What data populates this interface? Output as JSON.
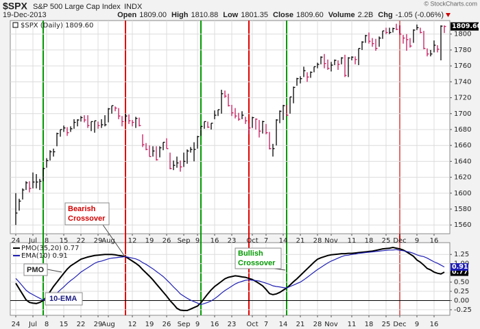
{
  "chart_data": [
    {
      "type": "ohlc",
      "title": "$SPX",
      "subtitle": "S&P 500 Large Cap Index",
      "exchange": "INDX",
      "date": "19-Dec-2013",
      "credit": "© StockCharts.com",
      "quote": [
        {
          "label": "Open",
          "value": "1809.00"
        },
        {
          "label": "High",
          "value": "1810.88"
        },
        {
          "label": "Low",
          "value": "1801.35"
        },
        {
          "label": "Close",
          "value": "1809.60"
        },
        {
          "label": "Volume",
          "value": "2.2B"
        },
        {
          "label": "Chg",
          "value": "-1.05 (-0.06%)"
        }
      ],
      "legend": "$SPX (Daily) 1809.60",
      "categories": [
        "24",
        null,
        null,
        null,
        null,
        "Jul",
        null,
        null,
        null,
        "8",
        null,
        null,
        null,
        null,
        "15",
        null,
        null,
        null,
        null,
        "22",
        null,
        null,
        null,
        null,
        "29",
        null,
        null,
        "Aug",
        null,
        null,
        null,
        null,
        null,
        null,
        "12",
        null,
        null,
        null,
        null,
        "19",
        null,
        null,
        null,
        null,
        "26",
        null,
        null,
        null,
        null,
        "Sep",
        null,
        null,
        null,
        "9",
        null,
        null,
        null,
        null,
        "16",
        null,
        null,
        null,
        null,
        "23",
        null,
        null,
        null,
        null,
        null,
        "Oct",
        null,
        null,
        null,
        "7",
        null,
        null,
        null,
        null,
        "14",
        null,
        null,
        null,
        null,
        "21",
        null,
        null,
        null,
        null,
        "28",
        null,
        null,
        null,
        "Nov",
        null,
        null,
        null,
        null,
        null,
        "11",
        null,
        null,
        null,
        null,
        "18",
        null,
        null,
        null,
        null,
        "25",
        null,
        null,
        null,
        "Dec",
        null,
        null,
        null,
        null,
        "9",
        null,
        null,
        null,
        null,
        "16",
        null,
        null,
        null
      ],
      "high": [
        1600,
        1593,
        1606,
        1615,
        1615,
        1626,
        1624,
        1618,
        1632,
        1644,
        1654,
        1656,
        1676,
        1680,
        1685,
        1683,
        1684,
        1693,
        1693,
        1697,
        1698,
        1698,
        1690,
        1691,
        1690,
        1693,
        1698,
        1707,
        1710,
        1709,
        1707,
        1697,
        1700,
        1699,
        1692,
        1696,
        1695,
        1674,
        1663,
        1660,
        1659,
        1659,
        1659,
        1664,
        1669,
        1651,
        1641,
        1646,
        1641,
        1651,
        1655,
        1658,
        1664,
        1672,
        1684,
        1690,
        1690,
        1688,
        1704,
        1705,
        1730,
        1729,
        1725,
        1711,
        1707,
        1701,
        1703,
        1696,
        1688,
        1696,
        1694,
        1692,
        1691,
        1687,
        1677,
        1662,
        1693,
        1704,
        1711,
        1711,
        1721,
        1734,
        1745,
        1747,
        1759,
        1752,
        1753,
        1759,
        1764,
        1772,
        1775,
        1768,
        1765,
        1768,
        1767,
        1771,
        1774,
        1771,
        1772,
        1772,
        1782,
        1791,
        1799,
        1802,
        1795,
        1794,
        1797,
        1804,
        1808,
        1808,
        1808,
        1813,
        1811,
        1799,
        1800,
        1795,
        1806,
        1812,
        1808,
        1804,
        1782,
        1780,
        1792,
        1786,
        1811,
        1810.88
      ],
      "low": [
        1560,
        1578,
        1592,
        1604,
        1601,
        1606,
        1606,
        1604,
        1615,
        1632,
        1641,
        1646,
        1659,
        1671,
        1677,
        1672,
        1677,
        1681,
        1684,
        1690,
        1689,
        1682,
        1678,
        1676,
        1681,
        1682,
        1684,
        1689,
        1700,
        1703,
        1693,
        1684,
        1690,
        1687,
        1684,
        1682,
        1684,
        1658,
        1654,
        1646,
        1646,
        1641,
        1645,
        1654,
        1656,
        1630,
        1629,
        1632,
        1627,
        1633,
        1637,
        1651,
        1640,
        1656,
        1672,
        1681,
        1682,
        1680,
        1693,
        1697,
        1700,
        1720,
        1709,
        1697,
        1694,
        1691,
        1693,
        1687,
        1674,
        1682,
        1680,
        1670,
        1675,
        1674,
        1655,
        1646,
        1660,
        1688,
        1692,
        1697,
        1700,
        1713,
        1735,
        1738,
        1746,
        1740,
        1745,
        1752,
        1757,
        1762,
        1757,
        1755,
        1753,
        1761,
        1755,
        1762,
        1746,
        1746,
        1767,
        1762,
        1761,
        1780,
        1789,
        1788,
        1784,
        1779,
        1784,
        1794,
        1800,
        1800,
        1802,
        1805,
        1799,
        1788,
        1779,
        1783,
        1789,
        1805,
        1801,
        1781,
        1772,
        1772,
        1777,
        1777,
        1767,
        1801.35
      ],
      "close": [
        1575,
        1590,
        1604,
        1613,
        1606,
        1614,
        1614,
        1615,
        1631,
        1641,
        1652,
        1652,
        1675,
        1680,
        1682,
        1676,
        1681,
        1689,
        1692,
        1695,
        1692,
        1685,
        1690,
        1691,
        1685,
        1686,
        1686,
        1706,
        1710,
        1707,
        1697,
        1690,
        1697,
        1691,
        1689,
        1694,
        1685,
        1661,
        1655,
        1646,
        1653,
        1642,
        1657,
        1664,
        1656,
        1631,
        1635,
        1638,
        1633,
        1640,
        1653,
        1655,
        1655,
        1671,
        1684,
        1690,
        1683,
        1688,
        1698,
        1705,
        1725,
        1722,
        1710,
        1701,
        1697,
        1693,
        1698,
        1691,
        1682,
        1695,
        1693,
        1678,
        1690,
        1676,
        1656,
        1656,
        1692,
        1703,
        1710,
        1698,
        1721,
        1733,
        1744,
        1744,
        1754,
        1746,
        1752,
        1759,
        1762,
        1771,
        1763,
        1757,
        1761,
        1767,
        1762,
        1770,
        1748,
        1770,
        1771,
        1768,
        1782,
        1790,
        1798,
        1791,
        1788,
        1782,
        1795,
        1804,
        1802,
        1802,
        1807,
        1806,
        1800,
        1795,
        1793,
        1785,
        1805,
        1808,
        1802,
        1782,
        1775,
        1775,
        1786,
        1781,
        1810,
        1809.6
      ],
      "up_color": "#000000",
      "down_color": "#c2185b",
      "ylim": [
        1549,
        1817
      ],
      "yticks": [
        1560,
        1580,
        1600,
        1620,
        1640,
        1660,
        1680,
        1700,
        1720,
        1740,
        1760,
        1780,
        1800
      ],
      "grid": true,
      "last_label": {
        "value": 1809.6,
        "label": "1809.60"
      },
      "signal_lines": [
        {
          "index": 8,
          "color": "#009900"
        },
        {
          "index": 32,
          "color": "#e00000"
        },
        {
          "index": 54,
          "color": "#009900"
        },
        {
          "index": 68,
          "color": "#e00000"
        },
        {
          "index": 79,
          "color": "#009900"
        },
        {
          "index": 112,
          "color": "#e00000"
        }
      ],
      "annotations": [
        {
          "lines": [
            "Bearish",
            "Crossover"
          ]
        }
      ]
    },
    {
      "type": "line",
      "series": [
        {
          "name": "PMO(35,20) 0.77",
          "color": "#000000",
          "last_label": {
            "value": 0.77,
            "label": "0.77"
          },
          "values": [
            0.47,
            0.32,
            0.17,
            0.02,
            -0.05,
            -0.07,
            -0.08,
            -0.05,
            0.0,
            0.11,
            0.24,
            0.38,
            0.5,
            0.62,
            0.74,
            0.85,
            0.94,
            1.0,
            1.06,
            1.12,
            1.15,
            1.18,
            1.2,
            1.22,
            1.23,
            1.24,
            1.25,
            1.25,
            1.25,
            1.24,
            1.22,
            1.21,
            1.19,
            1.13,
            1.07,
            1.01,
            0.94,
            0.84,
            0.75,
            0.66,
            0.56,
            0.45,
            0.34,
            0.23,
            0.12,
            0.0,
            -0.1,
            -0.21,
            -0.26,
            -0.27,
            -0.27,
            -0.23,
            -0.19,
            -0.15,
            -0.06,
            0.06,
            0.18,
            0.29,
            0.38,
            0.45,
            0.52,
            0.59,
            0.63,
            0.65,
            0.67,
            0.66,
            0.64,
            0.63,
            0.6,
            0.57,
            0.52,
            0.46,
            0.4,
            0.3,
            0.19,
            0.16,
            0.18,
            0.22,
            0.28,
            0.34,
            0.42,
            0.51,
            0.59,
            0.68,
            0.77,
            0.86,
            0.95,
            1.04,
            1.12,
            1.16,
            1.19,
            1.22,
            1.24,
            1.25,
            1.26,
            1.27,
            1.27,
            1.28,
            1.28,
            1.29,
            1.3,
            1.31,
            1.32,
            1.33,
            1.34,
            1.36,
            1.38,
            1.4,
            1.41,
            1.42,
            1.44,
            1.42,
            1.4,
            1.37,
            1.32,
            1.26,
            1.2,
            1.1,
            1.04,
            0.96,
            0.87,
            0.83,
            0.77,
            0.74,
            0.72,
            0.77
          ]
        },
        {
          "name": "EMA(10) 0.91",
          "color": "#1f1fb4",
          "last_label": {
            "value": 0.91,
            "label": "0.91"
          },
          "values": [
            0.6,
            0.5,
            0.39,
            0.28,
            0.21,
            0.16,
            0.11,
            0.06,
            0.01,
            0.04,
            0.09,
            0.13,
            0.2,
            0.29,
            0.37,
            0.46,
            0.54,
            0.61,
            0.69,
            0.77,
            0.83,
            0.89,
            0.95,
            1.01,
            1.05,
            1.07,
            1.1,
            1.13,
            1.15,
            1.16,
            1.17,
            1.18,
            1.19,
            1.17,
            1.15,
            1.13,
            1.09,
            1.03,
            0.98,
            0.92,
            0.86,
            0.79,
            0.72,
            0.65,
            0.56,
            0.47,
            0.37,
            0.28,
            0.18,
            0.12,
            0.06,
            0.01,
            -0.03,
            -0.07,
            -0.11,
            -0.08,
            -0.05,
            -0.01,
            0.05,
            0.12,
            0.2,
            0.27,
            0.33,
            0.39,
            0.45,
            0.49,
            0.52,
            0.55,
            0.56,
            0.55,
            0.54,
            0.53,
            0.5,
            0.47,
            0.44,
            0.4,
            0.38,
            0.37,
            0.35,
            0.34,
            0.38,
            0.42,
            0.46,
            0.5,
            0.56,
            0.63,
            0.7,
            0.77,
            0.84,
            0.9,
            0.96,
            1.02,
            1.07,
            1.11,
            1.15,
            1.19,
            1.22,
            1.23,
            1.25,
            1.26,
            1.28,
            1.29,
            1.3,
            1.31,
            1.32,
            1.33,
            1.34,
            1.35,
            1.36,
            1.37,
            1.37,
            1.38,
            1.36,
            1.35,
            1.33,
            1.31,
            1.28,
            1.24,
            1.21,
            1.19,
            1.15,
            1.1,
            1.05,
            1.01,
            0.96,
            0.91
          ]
        }
      ],
      "ylim": [
        -0.4,
        1.57
      ],
      "yticks": [
        -0.25,
        {
          "value": 0,
          "label": "0.00"
        },
        0.25,
        {
          "value": 0.5,
          "label": "0.50"
        },
        0.75,
        {
          "value": 1,
          "label": "1.00"
        },
        1.25
      ],
      "grid": true,
      "zero_line": true,
      "annotations": [
        {
          "lines": [
            "Bullish",
            "Crossover"
          ]
        },
        {
          "lines": [
            "PMO"
          ]
        },
        {
          "lines": [
            "10-EMA"
          ]
        }
      ]
    }
  ]
}
